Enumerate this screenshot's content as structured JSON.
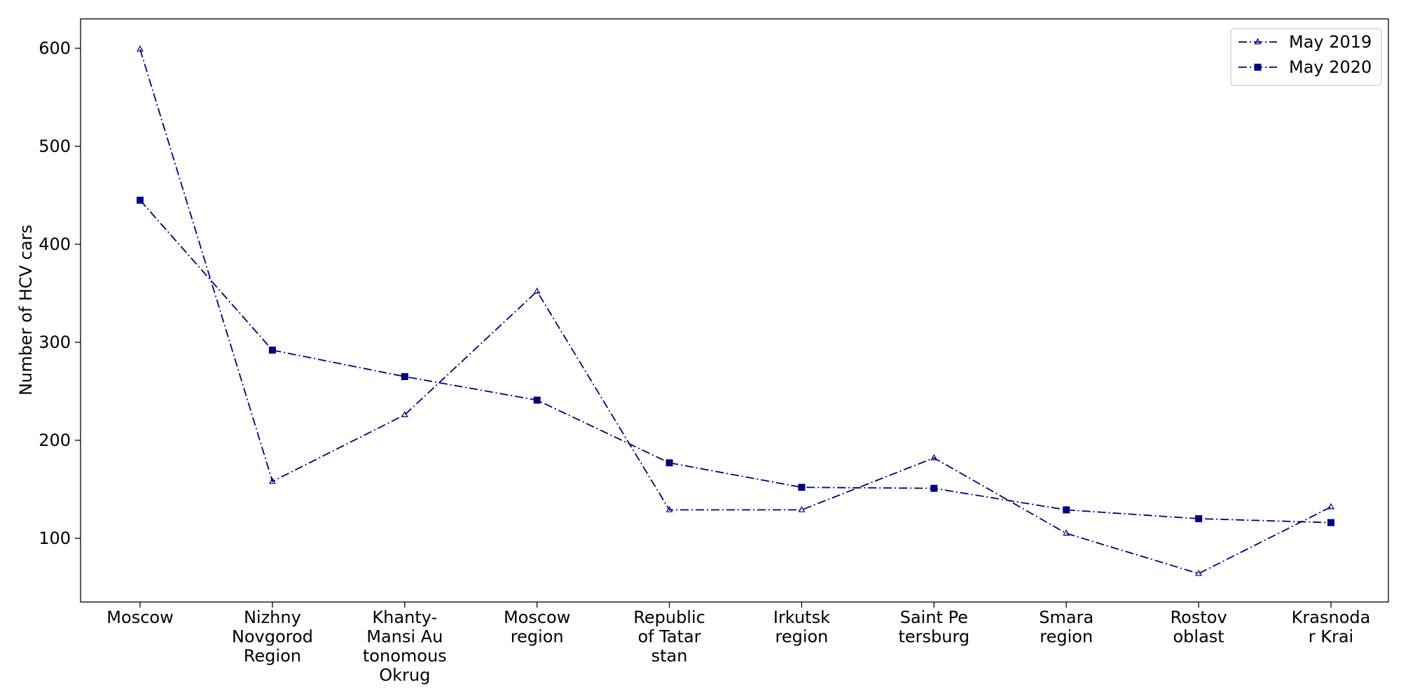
{
  "chart_data": {
    "type": "line",
    "title": "",
    "xlabel": "",
    "ylabel": "Number of HCV cars",
    "categories": [
      "Moscow",
      "Nizhny\nNovgorod\nRegion",
      "Khanty-\nMansi Au\ntonomous\nOkrug",
      "Moscow\nregion",
      "Republic\nof Tatar\nstan",
      "Irkutsk\nregion",
      "Saint Pe\ntersburg",
      "Smara\nregion",
      "Rostov\noblast",
      "Krasnoda\nr Krai"
    ],
    "ylim": [
      35,
      630
    ],
    "yticks": [
      100,
      200,
      300,
      400,
      500,
      600
    ],
    "grid": false,
    "legend_position": "top-right",
    "series": [
      {
        "name": "May 2019",
        "color": "#000080",
        "marker": "triangle-up",
        "line_style": "dash-dot",
        "values": [
          599,
          158,
          226,
          352,
          129,
          129,
          182,
          105,
          64,
          132
        ]
      },
      {
        "name": "May 2020",
        "color": "#000080",
        "marker": "square",
        "line_style": "dash-dot",
        "values": [
          445,
          292,
          265,
          241,
          177,
          152,
          151,
          129,
          120,
          116
        ]
      }
    ]
  }
}
